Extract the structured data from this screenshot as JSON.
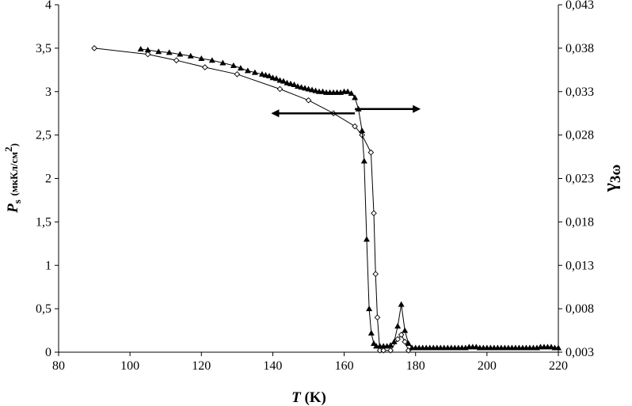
{
  "chart_data": {
    "type": "line",
    "x_axis": {
      "label_symbol": "T",
      "label_unit": "(K)",
      "range": [
        80,
        220
      ],
      "ticks": [
        "80",
        "100",
        "120",
        "140",
        "160",
        "180",
        "200",
        "220"
      ]
    },
    "y_left": {
      "label_symbol": "P",
      "label_subscript": "s",
      "label_unit": "(мкКл/см",
      "label_unit_superscript": "2",
      "label_unit_close": ")",
      "range": [
        0,
        4
      ],
      "ticks": [
        "0",
        "0,5",
        "1",
        "1,5",
        "2",
        "2,5",
        "3",
        "3,5",
        "4"
      ]
    },
    "y_right": {
      "label_symbol": "γ",
      "label_subscript": "3ω",
      "range": [
        0.003,
        0.043
      ],
      "ticks": [
        "0,003",
        "0,008",
        "0,013",
        "0,018",
        "0,023",
        "0,028",
        "0,033",
        "0,038",
        "0,043"
      ]
    },
    "grid": false,
    "legend": "none",
    "annotations": [
      {
        "type": "arrow",
        "direction": "left",
        "points_to": "left axis",
        "x_from": 163,
        "x_to": 140,
        "y_left": 2.75
      },
      {
        "type": "arrow",
        "direction": "right",
        "points_to": "right axis",
        "x_from": 163,
        "x_to": 181,
        "y_left": 2.8
      }
    ],
    "series": [
      {
        "axis": "left",
        "marker": "open-diamond",
        "color": "#000000",
        "x": [
          90,
          105,
          113,
          121,
          130,
          142,
          150,
          157,
          163,
          165,
          167.5,
          168.3,
          168.8,
          169.3,
          170,
          171,
          173,
          175,
          176,
          177,
          178
        ],
        "y": [
          3.5,
          3.43,
          3.36,
          3.28,
          3.2,
          3.03,
          2.9,
          2.75,
          2.6,
          2.5,
          2.3,
          1.6,
          0.9,
          0.4,
          0.02,
          0.02,
          0.02,
          0.15,
          0.2,
          0.12,
          0.02
        ]
      },
      {
        "axis": "left",
        "marker": "filled-triangle",
        "color": "#000000",
        "x": [
          103,
          105,
          108,
          111,
          114,
          117,
          120,
          123,
          126,
          129,
          131,
          133,
          135,
          137,
          138,
          139,
          140,
          141,
          142,
          143,
          144,
          145,
          146,
          147,
          148,
          149,
          150,
          151,
          152,
          153,
          154,
          155,
          156,
          157,
          158,
          159,
          160,
          161,
          162,
          163,
          164,
          165,
          165.6,
          166.3,
          167,
          167.6,
          168.3,
          169,
          170,
          171,
          172,
          173,
          174,
          175,
          176,
          177,
          178,
          179,
          180,
          181,
          182,
          183,
          184,
          185,
          186,
          187,
          188,
          189,
          190,
          191,
          192,
          193,
          194,
          195,
          196,
          197,
          198,
          199,
          200,
          201,
          202,
          203,
          204,
          205,
          206,
          207,
          208,
          209,
          210,
          211,
          212,
          213,
          214,
          215,
          216,
          217,
          218,
          219,
          220
        ],
        "y": [
          3.49,
          3.48,
          3.46,
          3.45,
          3.43,
          3.41,
          3.38,
          3.36,
          3.33,
          3.3,
          3.27,
          3.24,
          3.22,
          3.2,
          3.19,
          3.18,
          3.16,
          3.15,
          3.13,
          3.12,
          3.1,
          3.09,
          3.08,
          3.06,
          3.05,
          3.04,
          3.03,
          3.02,
          3.01,
          3.0,
          3.0,
          2.99,
          2.99,
          2.99,
          2.99,
          2.99,
          3.0,
          3.0,
          2.98,
          2.93,
          2.8,
          2.55,
          2.2,
          1.3,
          0.5,
          0.22,
          0.1,
          0.07,
          0.07,
          0.07,
          0.07,
          0.08,
          0.12,
          0.3,
          0.55,
          0.25,
          0.1,
          0.05,
          0.05,
          0.05,
          0.05,
          0.05,
          0.05,
          0.05,
          0.05,
          0.05,
          0.05,
          0.05,
          0.05,
          0.05,
          0.05,
          0.05,
          0.05,
          0.06,
          0.06,
          0.06,
          0.05,
          0.05,
          0.05,
          0.05,
          0.05,
          0.05,
          0.05,
          0.05,
          0.05,
          0.05,
          0.05,
          0.05,
          0.05,
          0.05,
          0.05,
          0.05,
          0.05,
          0.06,
          0.06,
          0.06,
          0.06,
          0.05,
          0.05
        ]
      }
    ]
  }
}
